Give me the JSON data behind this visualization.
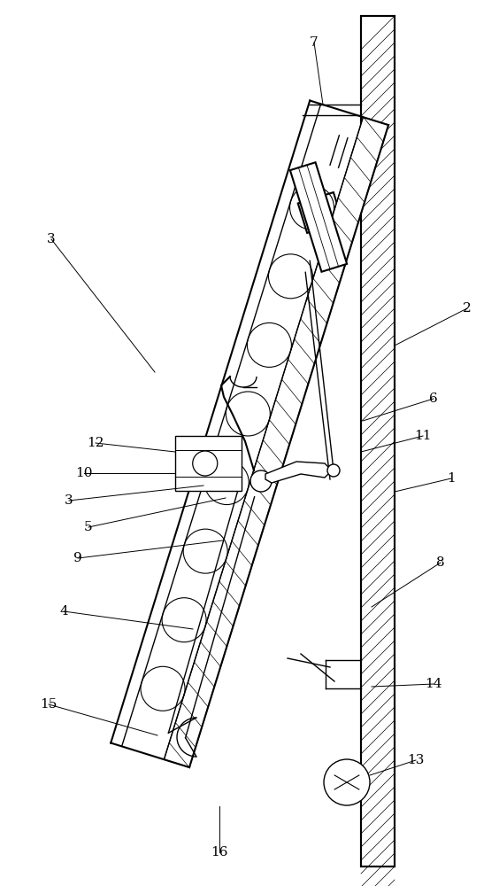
{
  "fig_width": 5.64,
  "fig_height": 10.0,
  "dpi": 100,
  "bg_color": "#ffffff",
  "line_color": "#000000",
  "label_fontsize": 11,
  "label_color": "#000000"
}
